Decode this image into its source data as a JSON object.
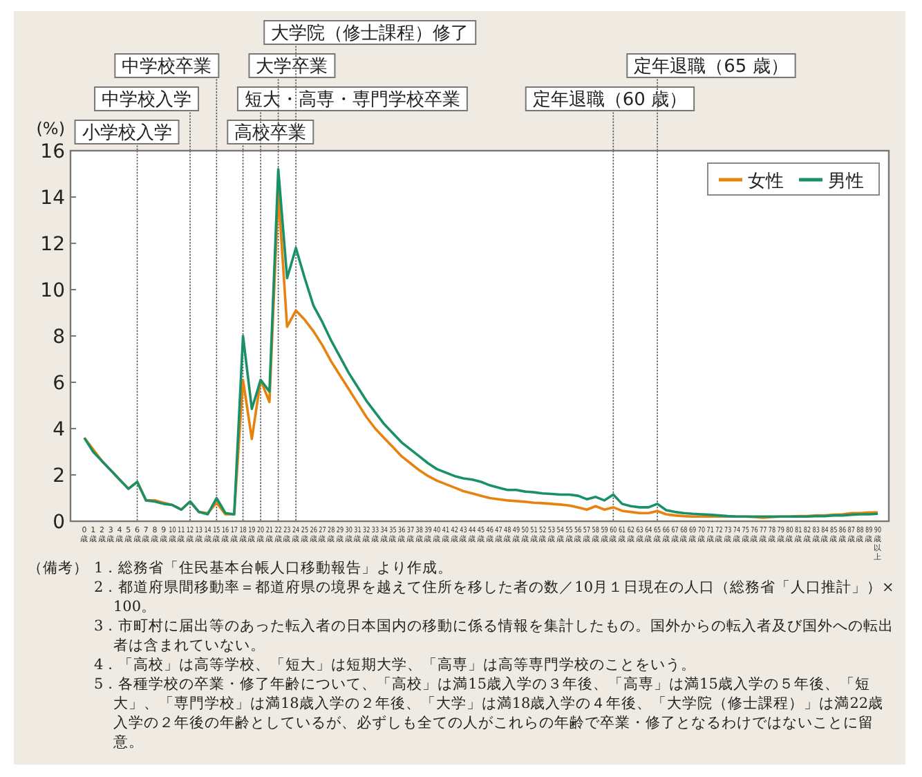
{
  "chart_data": {
    "type": "line",
    "ylabel": "(%)",
    "categories": [
      "0歳",
      "1歳",
      "2歳",
      "3歳",
      "4歳",
      "5歳",
      "6歳",
      "7歳",
      "8歳",
      "9歳",
      "10歳",
      "11歳",
      "12歳",
      "13歳",
      "14歳",
      "15歳",
      "16歳",
      "17歳",
      "18歳",
      "19歳",
      "20歳",
      "21歳",
      "22歳",
      "23歳",
      "24歳",
      "25歳",
      "26歳",
      "27歳",
      "28歳",
      "29歳",
      "30歳",
      "31歳",
      "32歳",
      "33歳",
      "34歳",
      "35歳",
      "36歳",
      "37歳",
      "38歳",
      "39歳",
      "40歳",
      "41歳",
      "42歳",
      "43歳",
      "44歳",
      "45歳",
      "46歳",
      "47歳",
      "48歳",
      "49歳",
      "50歳",
      "51歳",
      "52歳",
      "53歳",
      "54歳",
      "55歳",
      "56歳",
      "57歳",
      "58歳",
      "59歳",
      "60歳",
      "61歳",
      "62歳",
      "63歳",
      "64歳",
      "65歳",
      "66歳",
      "67歳",
      "68歳",
      "69歳",
      "70歳",
      "71歳",
      "72歳",
      "73歳",
      "74歳",
      "75歳",
      "76歳",
      "77歳",
      "78歳",
      "79歳",
      "80歳",
      "81歳",
      "82歳",
      "83歳",
      "84歳",
      "85歳",
      "86歳",
      "87歳",
      "88歳",
      "89歳",
      "90歳以上"
    ],
    "series": [
      {
        "name": "女性",
        "color": "#e8820e",
        "values": [
          3.6,
          3.1,
          2.6,
          2.2,
          1.8,
          1.4,
          1.7,
          0.9,
          0.9,
          0.8,
          0.7,
          0.5,
          0.85,
          0.4,
          0.35,
          0.8,
          0.3,
          0.3,
          6.1,
          3.55,
          6.1,
          5.15,
          14.2,
          8.4,
          9.1,
          8.7,
          8.2,
          7.6,
          6.9,
          6.3,
          5.7,
          5.1,
          4.5,
          4.0,
          3.6,
          3.2,
          2.8,
          2.5,
          2.2,
          1.95,
          1.75,
          1.6,
          1.45,
          1.3,
          1.2,
          1.1,
          1.0,
          0.95,
          0.9,
          0.87,
          0.84,
          0.8,
          0.78,
          0.75,
          0.72,
          0.68,
          0.6,
          0.5,
          0.65,
          0.5,
          0.6,
          0.45,
          0.4,
          0.35,
          0.35,
          0.44,
          0.3,
          0.25,
          0.22,
          0.2,
          0.2,
          0.2,
          0.2,
          0.2,
          0.2,
          0.2,
          0.18,
          0.15,
          0.18,
          0.2,
          0.2,
          0.22,
          0.22,
          0.25,
          0.25,
          0.28,
          0.3,
          0.35,
          0.35,
          0.38,
          0.38
        ]
      },
      {
        "name": "男性",
        "color": "#1a9068",
        "values": [
          3.6,
          3.0,
          2.6,
          2.2,
          1.8,
          1.4,
          1.7,
          0.9,
          0.85,
          0.75,
          0.7,
          0.5,
          0.85,
          0.4,
          0.3,
          1.0,
          0.35,
          0.3,
          8.0,
          4.85,
          6.1,
          5.6,
          15.2,
          10.5,
          11.8,
          10.5,
          9.3,
          8.6,
          7.8,
          7.1,
          6.4,
          5.8,
          5.2,
          4.7,
          4.2,
          3.8,
          3.4,
          3.1,
          2.8,
          2.5,
          2.25,
          2.1,
          1.95,
          1.85,
          1.8,
          1.7,
          1.55,
          1.45,
          1.35,
          1.35,
          1.28,
          1.25,
          1.2,
          1.18,
          1.15,
          1.15,
          1.1,
          0.95,
          1.05,
          0.9,
          1.15,
          0.75,
          0.65,
          0.6,
          0.6,
          0.75,
          0.48,
          0.4,
          0.35,
          0.32,
          0.3,
          0.28,
          0.25,
          0.22,
          0.2,
          0.2,
          0.2,
          0.2,
          0.2,
          0.2,
          0.2,
          0.2,
          0.2,
          0.22,
          0.22,
          0.25,
          0.25,
          0.28,
          0.3,
          0.3,
          0.32
        ]
      }
    ],
    "ylim": [
      0,
      16
    ],
    "yticks": [
      0,
      2,
      4,
      6,
      8,
      10,
      12,
      14,
      16
    ],
    "grid": false,
    "legend": "top right",
    "marker": "none",
    "line_style": "solid",
    "ref_lines": [
      {
        "axis": "x",
        "value": "6歳",
        "label": "小学校入学",
        "color": "#555555",
        "line_style": "dotted"
      },
      {
        "axis": "x",
        "value": "12歳",
        "label": "中学校入学",
        "color": "#555555",
        "line_style": "dotted"
      },
      {
        "axis": "x",
        "value": "15歳",
        "label": "中学校卒業",
        "color": "#555555",
        "line_style": "dotted"
      },
      {
        "axis": "x",
        "value": "18歳",
        "label": "高校卒業",
        "color": "#555555",
        "line_style": "dotted"
      },
      {
        "axis": "x",
        "value": "20歳",
        "label": "短大・高専・専門学校卒業",
        "color": "#555555",
        "line_style": "dotted"
      },
      {
        "axis": "x",
        "value": "22歳",
        "label": "大学卒業",
        "color": "#555555",
        "line_style": "dotted"
      },
      {
        "axis": "x",
        "value": "24歳",
        "label": "大学院（修士課程）修了",
        "color": "#555555",
        "line_style": "dotted"
      },
      {
        "axis": "x",
        "value": "60歳",
        "label": "定年退職（60 歳）",
        "color": "#555555",
        "line_style": "dotted"
      },
      {
        "axis": "x",
        "value": "65歳",
        "label": "定年退職（65 歳）",
        "color": "#555555",
        "line_style": "dotted"
      }
    ],
    "annotations": [
      "（備考）",
      "1．総務省「住民基本台帳人口移動報告」より作成。",
      "2．都道府県間移動率＝都道府県の境界を越えて住所を移した者の数／10月１日現在の人口（総務省「人口推計」）× 100。",
      "3．市町村に届出等のあった転入者の日本国内の移動に係る情報を集計したもの。国外からの転入者及び国外への転出者は含まれていない。",
      "4．「高校」は高等学校、「短大」は短期大学、「高専」は高等専門学校のことをいう。",
      "5．各種学校の卒業・修了年齢について、「高校」は満15歳入学の３年後、「高専」は満15歳入学の５年後、「短大」、「専門学校」は満18歳入学の２年後、「大学」は満18歳入学の４年後、「大学院（修士課程）」は満22歳入学の２年後の年齢としているが、必ずしも全ての人がこれらの年齢で卒業・修了となるわけではないことに留意。"
    ]
  }
}
